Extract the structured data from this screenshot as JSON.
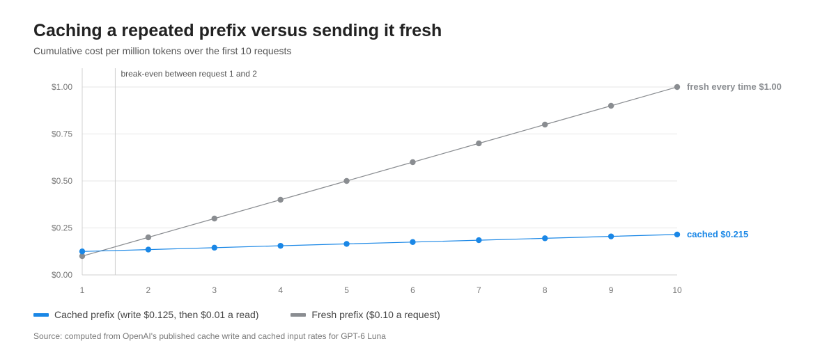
{
  "header": {
    "title": "Caching a repeated prefix versus sending it fresh",
    "subtitle": "Cumulative cost per million tokens over the first 10 requests"
  },
  "chart_data": {
    "type": "line",
    "x": [
      1,
      2,
      3,
      4,
      5,
      6,
      7,
      8,
      9,
      10
    ],
    "xlim": [
      1,
      10
    ],
    "ylim": [
      0,
      1.1
    ],
    "yticks": [
      0,
      0.25,
      0.5,
      0.75,
      1.0
    ],
    "ytick_labels": [
      "$0.00",
      "$0.25",
      "$0.50",
      "$0.75",
      "$1.00"
    ],
    "xtick_labels": [
      "1",
      "2",
      "3",
      "4",
      "5",
      "6",
      "7",
      "8",
      "9",
      "10"
    ],
    "grid": true,
    "series": [
      {
        "key": "cached",
        "legend": "Cached prefix (write $0.125, then $0.01 a read)",
        "end_label": "cached  $0.215",
        "color": "#1a87e6",
        "values": [
          0.125,
          0.135,
          0.145,
          0.155,
          0.165,
          0.175,
          0.185,
          0.195,
          0.205,
          0.215
        ]
      },
      {
        "key": "fresh",
        "legend": "Fresh prefix ($0.10 a request)",
        "end_label": "fresh every time  $1.00",
        "color": "#8a8d91",
        "values": [
          0.1,
          0.2,
          0.3,
          0.4,
          0.5,
          0.6,
          0.7,
          0.8,
          0.9,
          1.0
        ]
      }
    ],
    "annotation": {
      "text": "break-even between request 1 and 2",
      "x": 1.5
    }
  },
  "source": "Source: computed from OpenAI's published cache write and cached input rates for GPT-6 Luna"
}
